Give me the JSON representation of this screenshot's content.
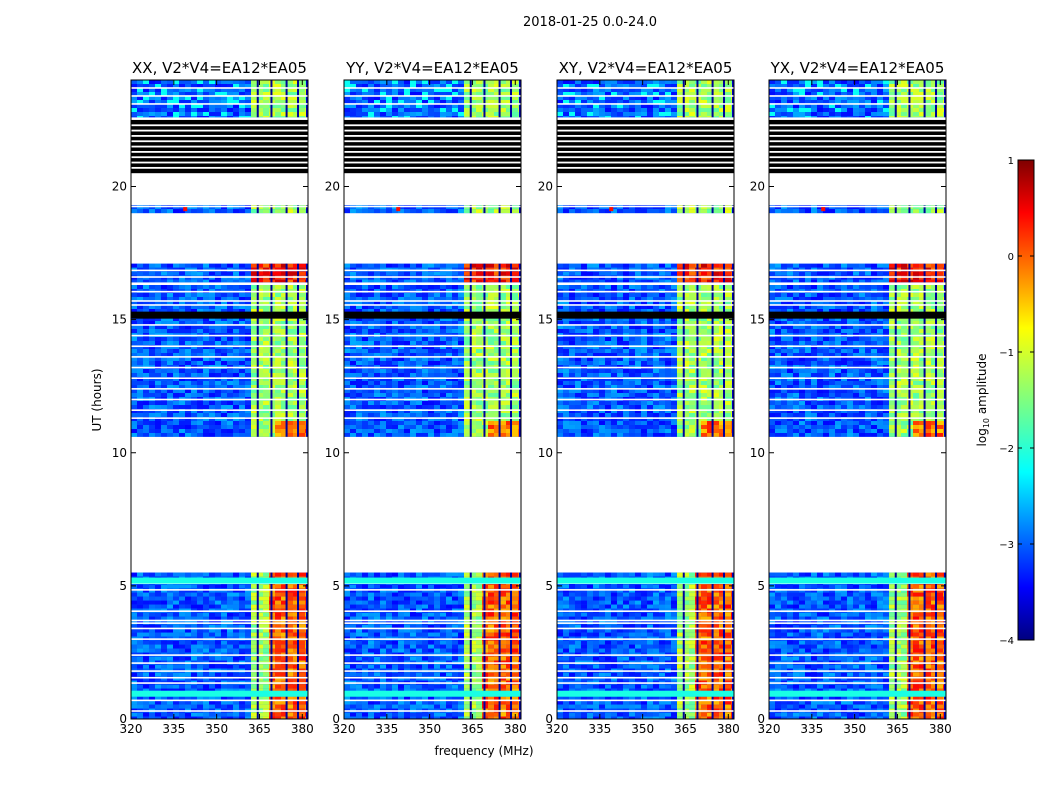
{
  "chart_data": {
    "type": "heatmap",
    "title": "2018-01-25 0.0-24.0",
    "xlabel": "frequency (MHz)",
    "ylabel": "UT (hours)",
    "xlim": [
      320,
      382
    ],
    "ylim": [
      0,
      24
    ],
    "xticks": [
      320,
      335,
      350,
      365,
      380
    ],
    "yticks": [
      0,
      5,
      10,
      15,
      20
    ],
    "colorbar": {
      "label_base": "log",
      "label_sub": "10",
      "label_rest": " amplitude",
      "range": [
        -4,
        1
      ],
      "ticks": [
        1,
        0,
        -1,
        -2,
        -3,
        -4
      ],
      "colors": [
        "#00007f",
        "#0000ff",
        "#007fff",
        "#00ffff",
        "#7fff7f",
        "#ffff00",
        "#ff7f00",
        "#ff0000",
        "#7f0000"
      ]
    },
    "panels": [
      {
        "title": "XX, V2*V4=EA12*EA05",
        "key": "XX"
      },
      {
        "title": "YY, V2*V4=EA12*EA05",
        "key": "YY"
      },
      {
        "title": "XY, V2*V4=EA12*EA05",
        "key": "XY"
      },
      {
        "title": "YX, V2*V4=EA12*EA05",
        "key": "YX"
      }
    ],
    "data_segments_ut": [
      [
        0,
        5.5
      ],
      [
        10.6,
        16.3
      ],
      [
        16.4,
        17.1
      ],
      [
        19.0,
        19.3
      ],
      [
        22.6,
        24.0
      ]
    ],
    "no_data_ut": [
      [
        5.5,
        10.6
      ],
      [
        17.1,
        19.0
      ],
      [
        19.3,
        20.5
      ]
    ],
    "flagged_bands_ut": [
      [
        20.5,
        22.5
      ]
    ],
    "band_active_mhz": [
      361,
      381
    ],
    "band_channel_gaps_mhz": [
      364.4,
      369.2,
      374.5,
      378.5
    ],
    "baseline_level_log10": -3.0,
    "band_level_log10": -1.3,
    "peak_level_log10": 0.3,
    "rfi_spike": {
      "freq_mhz": 339,
      "ut": 19.15,
      "level_log10": 0.4
    }
  }
}
